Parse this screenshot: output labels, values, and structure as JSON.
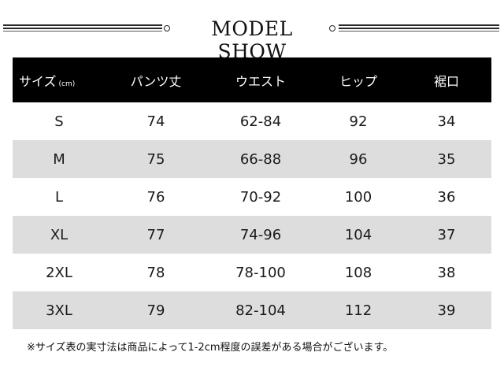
{
  "title": "MODEL SHOW",
  "table": {
    "headers": [
      "サイズ",
      "パンツ丈",
      "ウエスト",
      "ヒップ",
      "裾口"
    ],
    "size_unit": "(cm)",
    "rows": [
      [
        "S",
        "74",
        "62-84",
        "92",
        "34"
      ],
      [
        "M",
        "75",
        "66-88",
        "96",
        "35"
      ],
      [
        "L",
        "76",
        "70-92",
        "100",
        "36"
      ],
      [
        "XL",
        "77",
        "74-96",
        "104",
        "37"
      ],
      [
        "2XL",
        "78",
        "78-100",
        "108",
        "38"
      ],
      [
        "3XL",
        "79",
        "82-104",
        "112",
        "39"
      ]
    ]
  },
  "note": "※サイズ表の実寸法は商品によって1-2cm程度の誤差がある場合がございます。",
  "colors": {
    "header_bg": "#000000",
    "header_text": "#ffffff",
    "stripe": "#dddddd"
  }
}
